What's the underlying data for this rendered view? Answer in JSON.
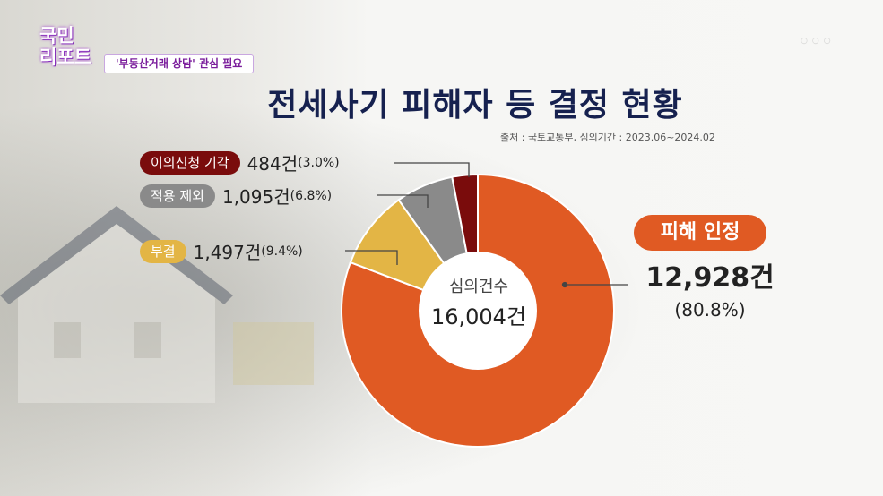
{
  "banner": {
    "logo_line1": "국민",
    "logo_line2": "리포트",
    "tag": "'부동산거래 상담' 관심 필요"
  },
  "title": "전세사기 피해자 등 결정 현황",
  "source": "출처 : 국토교통부, 심의기간 : 2023.06~2024.02",
  "colors": {
    "damage": "#e05a23",
    "dismissed": "#e3b545",
    "excluded": "#8a8a8a",
    "rejected": "#7a0c0c"
  },
  "chart_data": {
    "type": "pie",
    "donut": true,
    "start": "top",
    "direction": "clockwise",
    "center_label": "심의건수",
    "center_value": "16,004건",
    "slices": [
      {
        "label": "피해 인정",
        "value": 12928,
        "value_text": "12,928건",
        "pct_text": "(80.8%)",
        "color": "#e05a23"
      },
      {
        "label": "부결",
        "value": 1497,
        "value_text": "1,497건",
        "pct_text": "(9.4%)",
        "color": "#e3b545"
      },
      {
        "label": "적용 제외",
        "value": 1095,
        "value_text": "1,095건",
        "pct_text": "(6.8%)",
        "color": "#8a8a8a"
      },
      {
        "label": "이의신청 기각",
        "value": 484,
        "value_text": "484건",
        "pct_text": "(3.0%)",
        "color": "#7a0c0c"
      }
    ]
  }
}
